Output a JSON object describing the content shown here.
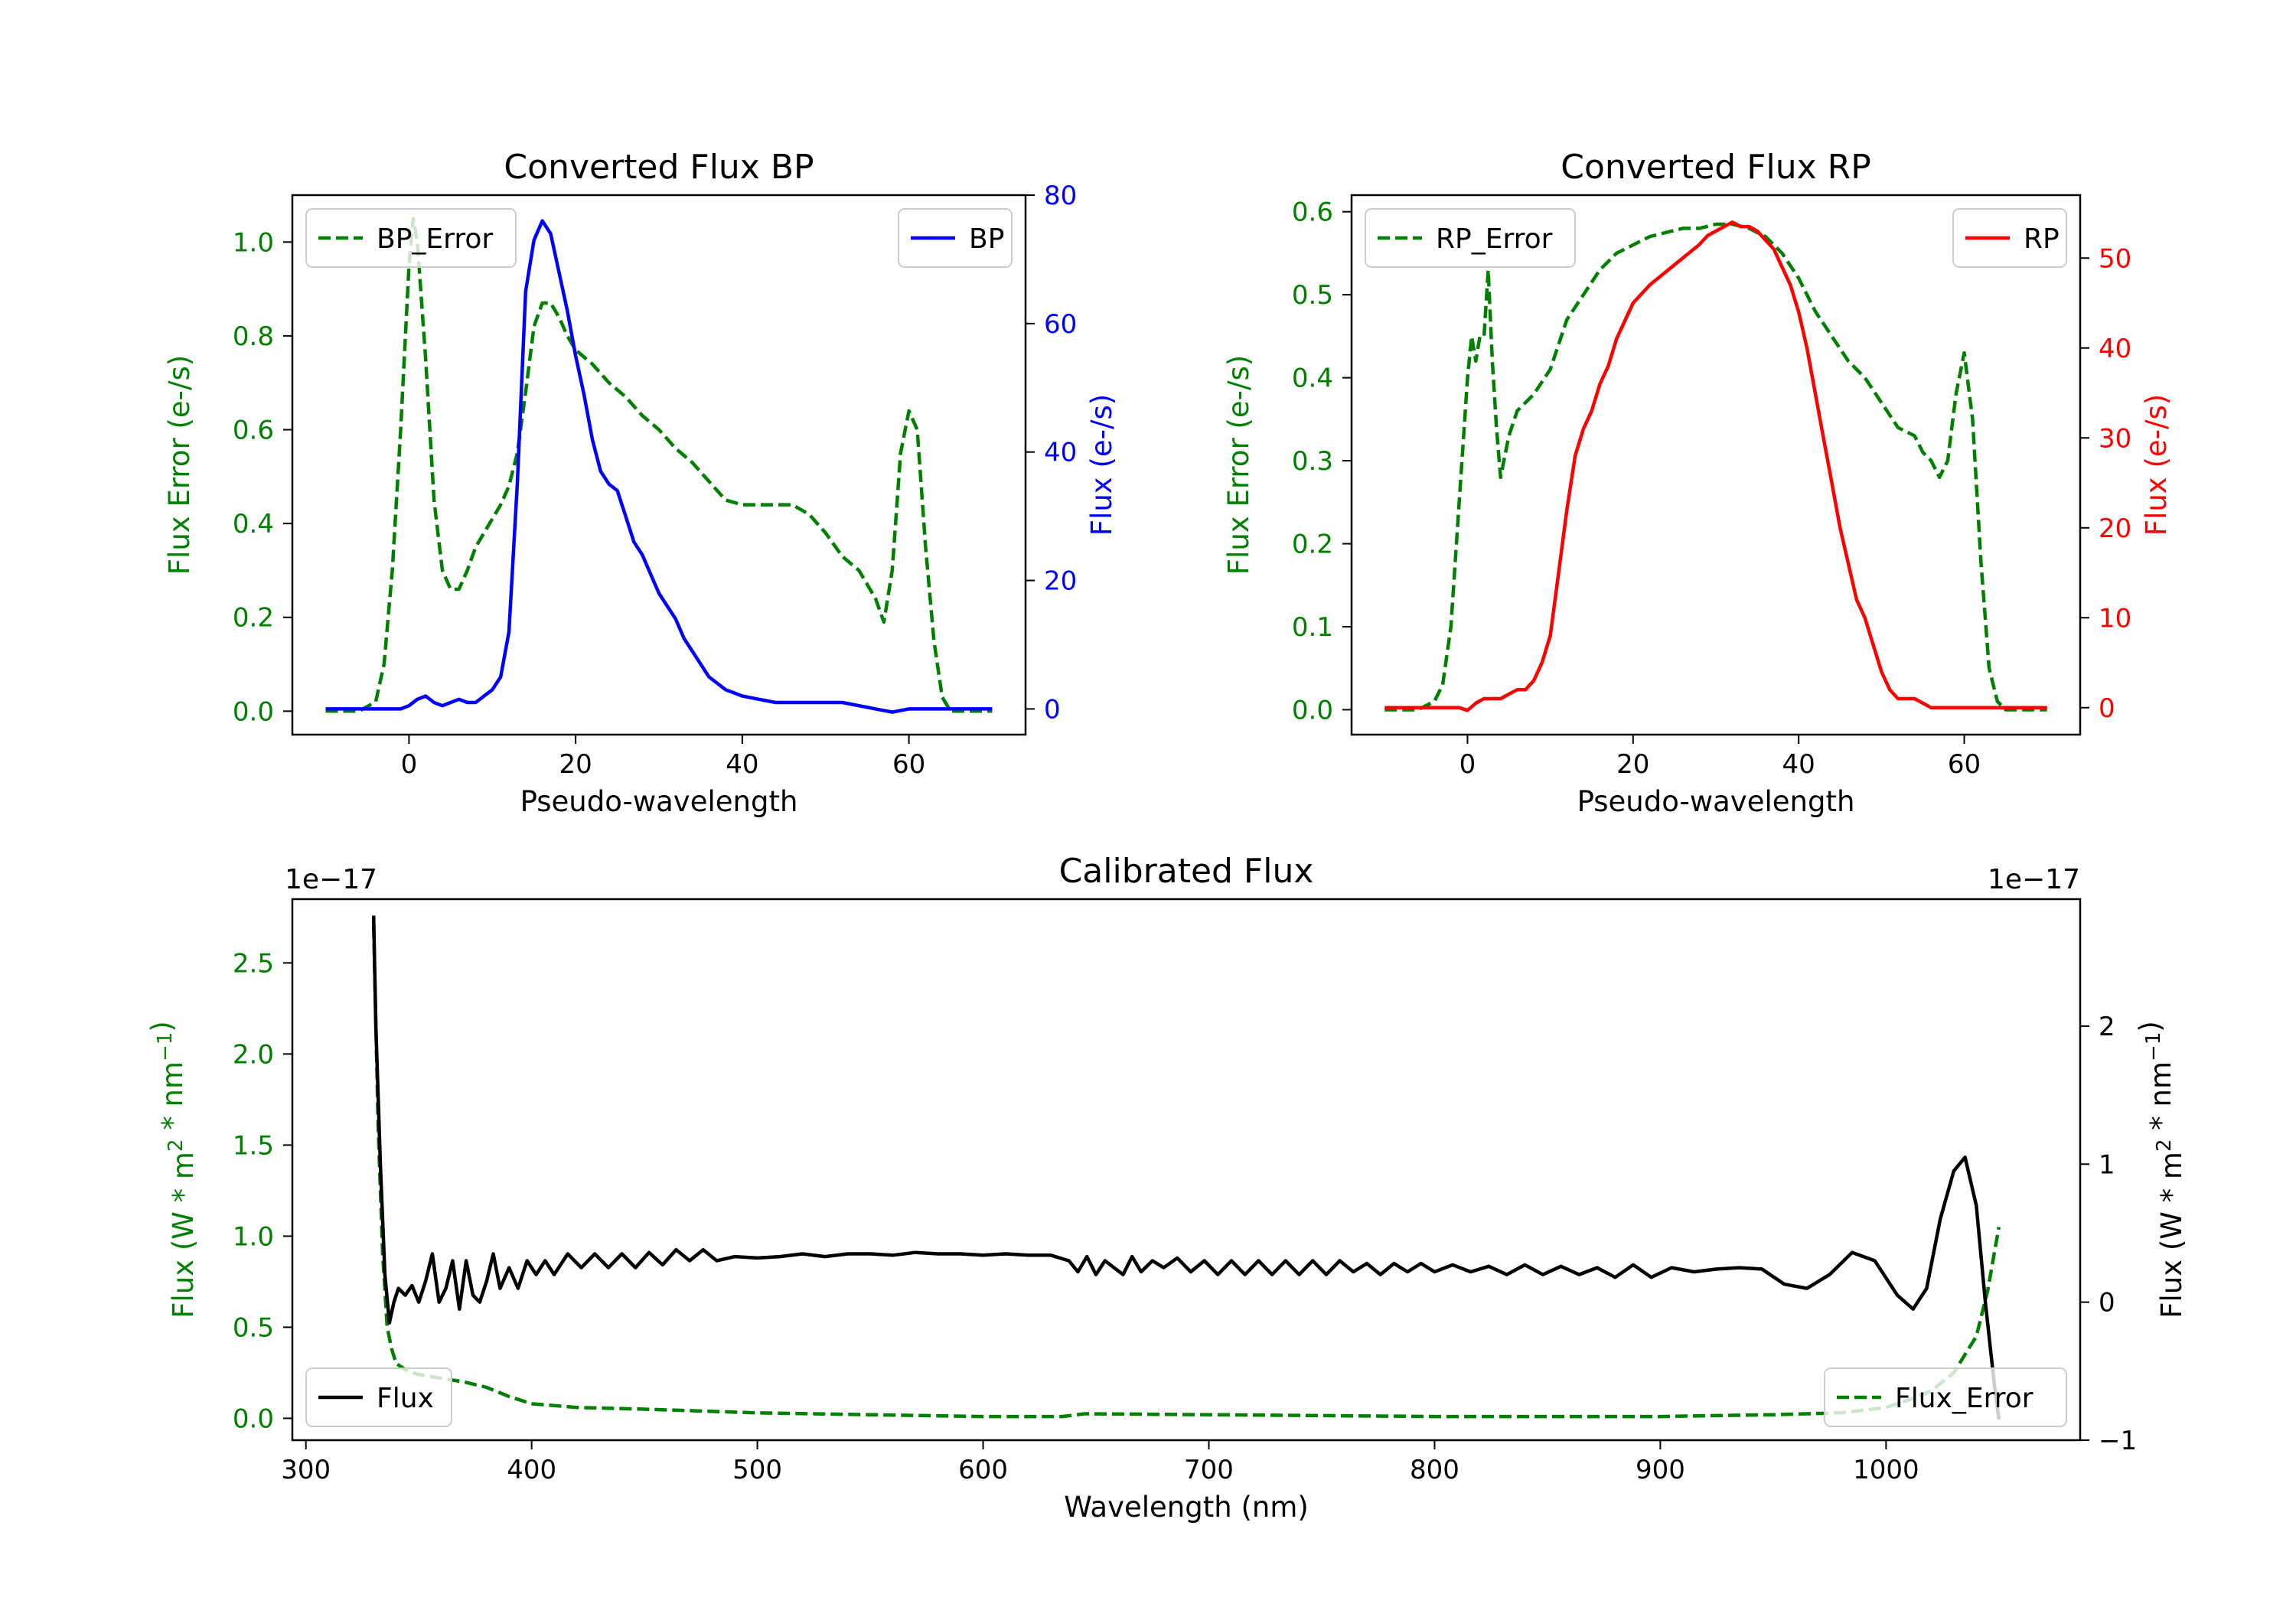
{
  "chart_data": [
    {
      "type": "line",
      "title": "Converted Flux BP",
      "xlabel": "Pseudo-wavelength",
      "ylabel_left": "Flux Error (e-/s)",
      "ylabel_right": "Flux (e-/s)",
      "xlim": [
        -14,
        74
      ],
      "ylim_left": [
        -0.05,
        1.1
      ],
      "ylim_right": [
        -4,
        80
      ],
      "xticks": [
        0,
        20,
        40,
        60
      ],
      "yticks_left": [
        0.0,
        0.2,
        0.4,
        0.6,
        0.8,
        1.0
      ],
      "yticks_right": [
        0,
        20,
        40,
        60,
        80
      ],
      "colors": {
        "left": "#008000",
        "right": "#0000ff"
      },
      "series": [
        {
          "name": "BP_Error",
          "axis": "left",
          "style": "dashed",
          "color": "#008000",
          "x": [
            -10,
            -6,
            -4,
            -3,
            -2,
            -1,
            0,
            0.5,
            1,
            2,
            3,
            4,
            5,
            6,
            7,
            8,
            9,
            10,
            11,
            12,
            13,
            14,
            15,
            16,
            17,
            18,
            19,
            20,
            22,
            24,
            26,
            28,
            30,
            32,
            34,
            36,
            38,
            40,
            42,
            44,
            46,
            48,
            50,
            52,
            54,
            56,
            57,
            58,
            59,
            60,
            61,
            62,
            63,
            64,
            65,
            67,
            70
          ],
          "y": [
            0.0,
            0.0,
            0.02,
            0.1,
            0.3,
            0.6,
            0.95,
            1.05,
            1.0,
            0.75,
            0.45,
            0.3,
            0.26,
            0.26,
            0.3,
            0.35,
            0.38,
            0.41,
            0.44,
            0.48,
            0.55,
            0.68,
            0.82,
            0.87,
            0.87,
            0.84,
            0.8,
            0.77,
            0.74,
            0.7,
            0.67,
            0.63,
            0.6,
            0.56,
            0.53,
            0.49,
            0.45,
            0.44,
            0.44,
            0.44,
            0.44,
            0.42,
            0.38,
            0.33,
            0.3,
            0.24,
            0.19,
            0.3,
            0.55,
            0.64,
            0.6,
            0.35,
            0.15,
            0.03,
            0.0,
            0.0,
            0.0
          ]
        },
        {
          "name": "BP",
          "axis": "right",
          "style": "solid",
          "color": "#0000ff",
          "x": [
            -10,
            -6,
            -3,
            -1,
            0,
            1,
            2,
            3,
            4,
            5,
            6,
            7,
            8,
            9,
            10,
            11,
            12,
            13,
            14,
            15,
            16,
            17,
            18,
            19,
            20,
            21,
            22,
            23,
            24,
            25,
            26,
            27,
            28,
            29,
            30,
            31,
            32,
            33,
            34,
            35,
            36,
            37,
            38,
            39,
            40,
            42,
            44,
            46,
            48,
            50,
            52,
            54,
            56,
            58,
            60,
            62,
            65,
            70
          ],
          "y": [
            0,
            0,
            0,
            0,
            0.5,
            1.5,
            2,
            1,
            0.5,
            1,
            1.5,
            1,
            1,
            2,
            3,
            5,
            12,
            35,
            65,
            73,
            76,
            74,
            68,
            62,
            55,
            49,
            42,
            37,
            35,
            34,
            30,
            26,
            24,
            21,
            18,
            16,
            14,
            11,
            9,
            7,
            5,
            4,
            3,
            2.5,
            2,
            1.5,
            1,
            1,
            1,
            1,
            1,
            0.5,
            0,
            -0.5,
            0,
            0,
            0,
            0
          ]
        }
      ],
      "legend": [
        {
          "label": "BP_Error",
          "position": "upper left"
        },
        {
          "label": "BP",
          "position": "upper right"
        }
      ]
    },
    {
      "type": "line",
      "title": "Converted Flux RP",
      "xlabel": "Pseudo-wavelength",
      "ylabel_left": "Flux Error (e-/s)",
      "ylabel_right": "Flux (e-/s)",
      "xlim": [
        -14,
        74
      ],
      "ylim_left": [
        -0.03,
        0.62
      ],
      "ylim_right": [
        -3,
        57
      ],
      "xticks": [
        0,
        20,
        40,
        60
      ],
      "yticks_left": [
        0.0,
        0.1,
        0.2,
        0.3,
        0.4,
        0.5,
        0.6
      ],
      "yticks_right": [
        0,
        10,
        20,
        30,
        40,
        50
      ],
      "colors": {
        "left": "#008000",
        "right": "#ff0000"
      },
      "series": [
        {
          "name": "RP_Error",
          "axis": "left",
          "style": "dashed",
          "color": "#008000",
          "x": [
            -10,
            -6,
            -4,
            -3,
            -2,
            -1,
            0,
            0.5,
            1,
            1.5,
            2,
            2.5,
            3,
            3.5,
            4,
            5,
            6,
            8,
            10,
            12,
            14,
            16,
            18,
            20,
            22,
            24,
            26,
            28,
            30,
            32,
            34,
            36,
            38,
            40,
            42,
            44,
            46,
            48,
            50,
            52,
            54,
            55,
            56,
            57,
            58,
            59,
            60,
            61,
            62,
            63,
            64,
            65,
            70
          ],
          "y": [
            0.0,
            0.0,
            0.01,
            0.03,
            0.1,
            0.25,
            0.4,
            0.45,
            0.42,
            0.45,
            0.45,
            0.53,
            0.42,
            0.34,
            0.28,
            0.33,
            0.36,
            0.38,
            0.41,
            0.47,
            0.5,
            0.53,
            0.55,
            0.56,
            0.57,
            0.575,
            0.58,
            0.58,
            0.585,
            0.585,
            0.58,
            0.57,
            0.55,
            0.52,
            0.48,
            0.45,
            0.42,
            0.4,
            0.37,
            0.34,
            0.33,
            0.31,
            0.3,
            0.28,
            0.3,
            0.38,
            0.43,
            0.35,
            0.18,
            0.05,
            0.01,
            0.0,
            0.0
          ]
        },
        {
          "name": "RP",
          "axis": "right",
          "style": "solid",
          "color": "#ff0000",
          "x": [
            -10,
            -6,
            -3,
            -1,
            0,
            1,
            2,
            3,
            4,
            5,
            6,
            7,
            8,
            9,
            10,
            11,
            12,
            13,
            14,
            15,
            16,
            17,
            18,
            19,
            20,
            22,
            24,
            26,
            28,
            29,
            30,
            31,
            32,
            33,
            34,
            35,
            36,
            37,
            38,
            39,
            40,
            41,
            42,
            43,
            44,
            45,
            46,
            47,
            48,
            49,
            50,
            51,
            52,
            53,
            54,
            55,
            56,
            58,
            60,
            62,
            65,
            70
          ],
          "y": [
            0,
            0,
            0,
            0,
            -0.3,
            0.5,
            1,
            1,
            1,
            1.5,
            2,
            2,
            3,
            5,
            8,
            15,
            22,
            28,
            31,
            33,
            36,
            38,
            41,
            43,
            45,
            47,
            48.5,
            50,
            51.5,
            52.5,
            53,
            53.5,
            54,
            53.5,
            53.5,
            53,
            52,
            51,
            49,
            47,
            44,
            40,
            35,
            30,
            25,
            20,
            16,
            12,
            10,
            7,
            4,
            2,
            1,
            1,
            1,
            0.5,
            0,
            0,
            0,
            0,
            0,
            0
          ]
        }
      ],
      "legend": [
        {
          "label": "RP_Error",
          "position": "upper left"
        },
        {
          "label": "RP",
          "position": "upper right"
        }
      ]
    },
    {
      "type": "line",
      "title": "Calibrated Flux",
      "xlabel": "Wavelength (nm)",
      "ylabel_left": "Flux (W * m2 * nm-1)",
      "ylabel_right": "Flux (W * m2 * nm-1)",
      "offset_left": "1e−17",
      "offset_right": "1e−17",
      "xlim": [
        294,
        1086
      ],
      "ylim_left": [
        -0.12,
        2.85
      ],
      "ylim_right": [
        -1.0,
        2.92
      ],
      "xticks": [
        300,
        400,
        500,
        600,
        700,
        800,
        900,
        1000
      ],
      "yticks_left": [
        0.0,
        0.5,
        1.0,
        1.5,
        2.0,
        2.5
      ],
      "yticks_right": [
        -1,
        0,
        1,
        2
      ],
      "colors": {
        "left": "#008000",
        "right": "#000000"
      },
      "series": [
        {
          "name": "Flux_Error",
          "axis": "left",
          "style": "dashed",
          "color": "#008000",
          "x": [
            330,
            332,
            334,
            336,
            338,
            340,
            345,
            350,
            360,
            370,
            380,
            390,
            400,
            420,
            450,
            500,
            550,
            600,
            635,
            645,
            700,
            800,
            900,
            950,
            980,
            1000,
            1010,
            1020,
            1030,
            1040,
            1045,
            1050
          ],
          "y": [
            2.7,
            1.6,
            0.9,
            0.5,
            0.38,
            0.3,
            0.26,
            0.24,
            0.22,
            0.2,
            0.17,
            0.12,
            0.08,
            0.06,
            0.05,
            0.03,
            0.02,
            0.01,
            0.01,
            0.025,
            0.02,
            0.01,
            0.01,
            0.02,
            0.03,
            0.06,
            0.1,
            0.15,
            0.25,
            0.45,
            0.7,
            1.05
          ]
        },
        {
          "name": "Flux",
          "axis": "right",
          "style": "solid",
          "color": "#000000",
          "x": [
            330,
            331,
            333,
            335,
            337,
            339,
            341,
            344,
            347,
            350,
            353,
            356,
            359,
            362,
            365,
            368,
            371,
            374,
            377,
            380,
            383,
            386,
            390,
            394,
            398,
            402,
            406,
            410,
            416,
            422,
            428,
            434,
            440,
            446,
            452,
            458,
            464,
            470,
            476,
            482,
            490,
            500,
            510,
            520,
            530,
            540,
            550,
            560,
            570,
            580,
            590,
            600,
            610,
            620,
            630,
            638,
            642,
            646,
            650,
            654,
            658,
            662,
            666,
            670,
            675,
            680,
            686,
            692,
            698,
            704,
            710,
            716,
            722,
            728,
            734,
            740,
            746,
            752,
            758,
            764,
            770,
            776,
            782,
            788,
            794,
            800,
            808,
            816,
            824,
            832,
            840,
            848,
            856,
            864,
            872,
            880,
            888,
            896,
            905,
            915,
            925,
            935,
            945,
            955,
            965,
            975,
            985,
            995,
            1005,
            1012,
            1018,
            1024,
            1030,
            1035,
            1040,
            1044,
            1048,
            1050
          ],
          "y": [
            2.8,
            2.0,
            1.0,
            0.2,
            -0.15,
            0.0,
            0.1,
            0.05,
            0.12,
            0.0,
            0.15,
            0.35,
            0.0,
            0.1,
            0.3,
            -0.05,
            0.3,
            0.05,
            0.0,
            0.15,
            0.35,
            0.1,
            0.25,
            0.1,
            0.3,
            0.2,
            0.3,
            0.2,
            0.35,
            0.25,
            0.35,
            0.25,
            0.35,
            0.25,
            0.36,
            0.27,
            0.38,
            0.3,
            0.38,
            0.3,
            0.33,
            0.32,
            0.33,
            0.35,
            0.33,
            0.35,
            0.35,
            0.34,
            0.36,
            0.35,
            0.35,
            0.34,
            0.35,
            0.34,
            0.34,
            0.3,
            0.22,
            0.33,
            0.2,
            0.3,
            0.25,
            0.2,
            0.33,
            0.22,
            0.3,
            0.25,
            0.32,
            0.22,
            0.3,
            0.2,
            0.3,
            0.2,
            0.3,
            0.2,
            0.3,
            0.2,
            0.3,
            0.2,
            0.3,
            0.22,
            0.28,
            0.2,
            0.28,
            0.22,
            0.28,
            0.22,
            0.27,
            0.22,
            0.26,
            0.2,
            0.27,
            0.2,
            0.26,
            0.2,
            0.25,
            0.18,
            0.27,
            0.18,
            0.25,
            0.22,
            0.24,
            0.25,
            0.24,
            0.13,
            0.1,
            0.2,
            0.36,
            0.3,
            0.05,
            -0.05,
            0.1,
            0.6,
            0.95,
            1.05,
            0.7,
            0.0,
            -0.6,
            -0.85
          ]
        }
      ],
      "legend": [
        {
          "label": "Flux",
          "position": "lower left"
        },
        {
          "label": "Flux_Error",
          "position": "lower right"
        }
      ]
    }
  ]
}
